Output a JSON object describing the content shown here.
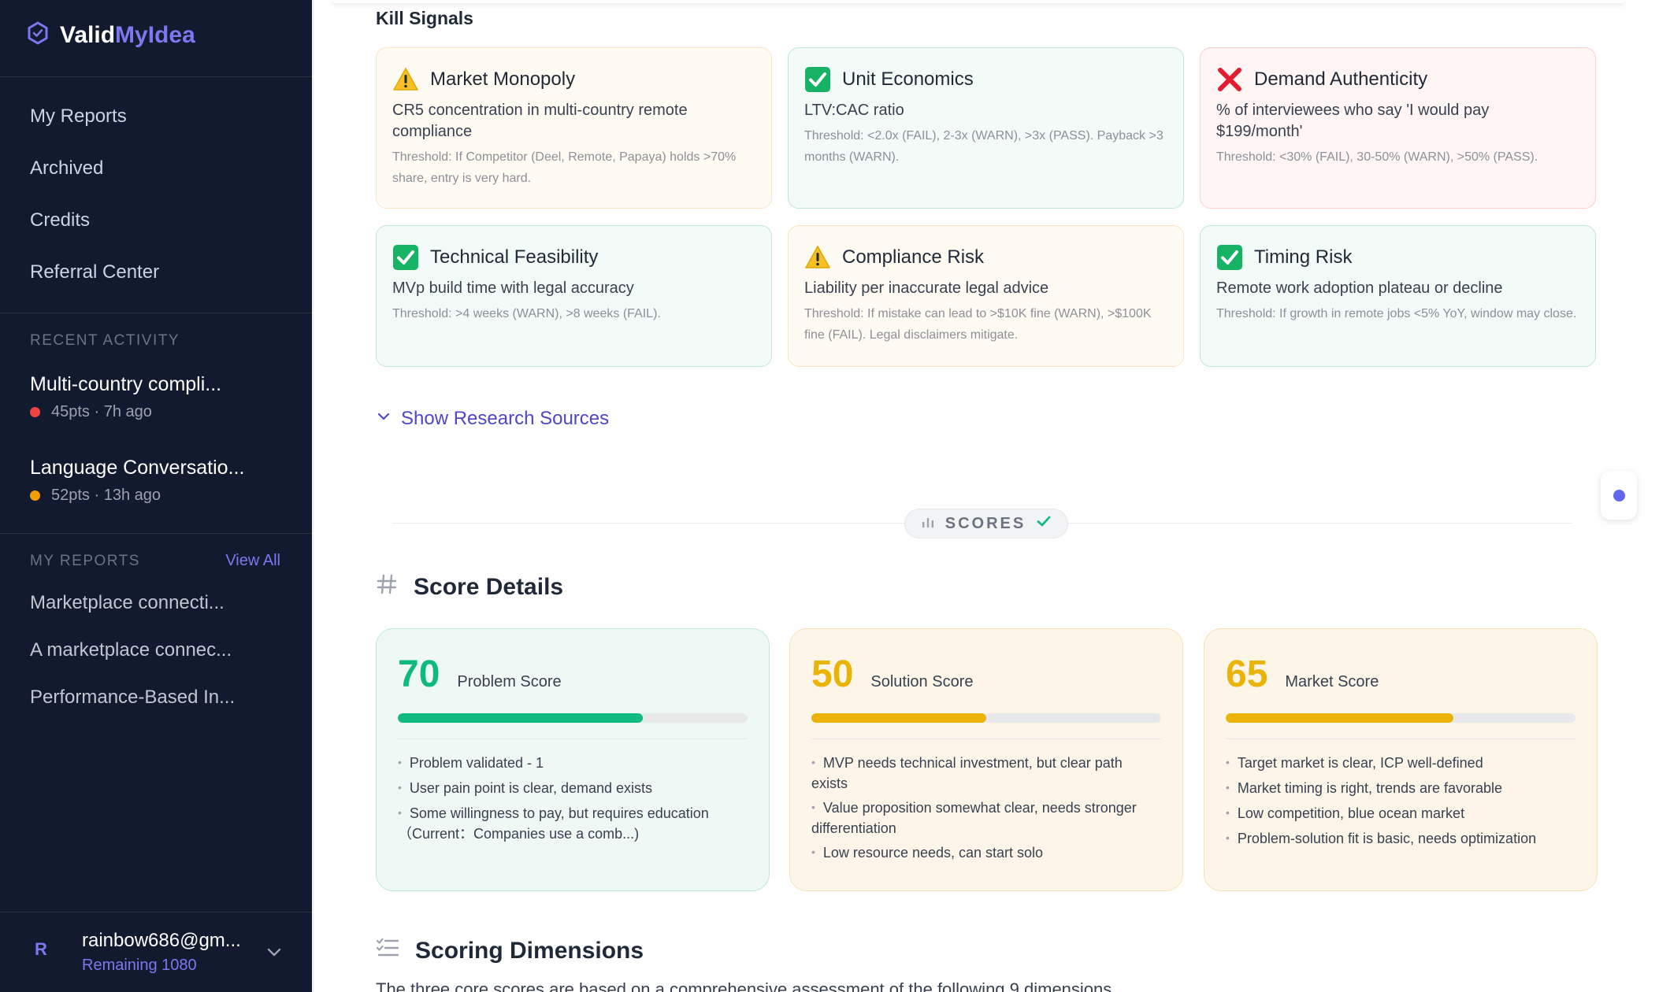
{
  "app": {
    "brand_prefix": "Valid",
    "brand_suffix": "MyIdea"
  },
  "sidebar": {
    "nav": [
      "My Reports",
      "Archived",
      "Credits",
      "Referral Center"
    ],
    "recent_label": "RECENT ACTIVITY",
    "recent": [
      {
        "title": "Multi-country compli...",
        "meta": "45pts · 7h ago",
        "status_color": "#ef4444"
      },
      {
        "title": "Language Conversatio...",
        "meta": "52pts · 13h ago",
        "status_color": "#f59e0b"
      }
    ],
    "reports_label": "MY REPORTS",
    "view_all": "View All",
    "reports": [
      "Marketplace connecti...",
      "A marketplace connec...",
      "Performance-Based In..."
    ],
    "user": {
      "avatar": "R",
      "email": "rainbow686@gm...",
      "credits": "Remaining 1080"
    }
  },
  "kill_signals": {
    "heading": "Kill Signals",
    "cards": [
      {
        "status": "warn",
        "icon": "warning-icon",
        "title": "Market Monopoly",
        "desc": "CR5 concentration in multi-country remote compliance",
        "threshold": "Threshold: If Competitor (Deel, Remote, Papaya) holds >70% share, entry is very hard."
      },
      {
        "status": "pass",
        "icon": "check-icon",
        "title": "Unit Economics",
        "desc": "LTV:CAC ratio",
        "threshold": "Threshold: <2.0x (FAIL), 2-3x (WARN), >3x (PASS). Payback >3 months (WARN)."
      },
      {
        "status": "fail",
        "icon": "cross-icon",
        "title": "Demand Authenticity",
        "desc": "% of interviewees who say 'I would pay $199/month'",
        "threshold": "Threshold: <30% (FAIL), 30-50% (WARN), >50% (PASS)."
      },
      {
        "status": "pass",
        "icon": "check-icon",
        "title": "Technical Feasibility",
        "desc": "MVp build time with legal accuracy",
        "threshold": "Threshold: >4 weeks (WARN), >8 weeks (FAIL)."
      },
      {
        "status": "warn",
        "icon": "warning-icon",
        "title": "Compliance Risk",
        "desc": "Liability per inaccurate legal advice",
        "threshold": "Threshold: If mistake can lead to >$10K fine (WARN), >$100K fine (FAIL). Legal disclaimers mitigate."
      },
      {
        "status": "pass",
        "icon": "check-icon",
        "title": "Timing Risk",
        "desc": "Remote work adoption plateau or decline",
        "threshold": "Threshold: If growth in remote jobs <5% YoY, window may close."
      }
    ],
    "show_sources": "Show Research Sources"
  },
  "scores_divider": "SCORES",
  "score_details": {
    "heading": "Score Details",
    "cards": [
      {
        "value": "70",
        "label": "Problem Score",
        "percent": 70,
        "color": "#10b981",
        "tone": "green",
        "bullets": [
          "Problem validated - 1",
          "User pain point is clear, demand exists",
          "Some willingness to pay, but requires education（Current：Companies use a comb...)"
        ]
      },
      {
        "value": "50",
        "label": "Solution Score",
        "percent": 50,
        "color": "#eab308",
        "tone": "amber",
        "bullets": [
          "MVP needs technical investment, but clear path exists",
          "Value proposition somewhat clear, needs stronger differentiation",
          "Low resource needs, can start solo"
        ]
      },
      {
        "value": "65",
        "label": "Market Score",
        "percent": 65,
        "color": "#eab308",
        "tone": "amber",
        "bullets": [
          "Target market is clear, ICP well-defined",
          "Market timing is right, trends are favorable",
          "Low competition, blue ocean market",
          "Problem-solution fit is basic, needs optimization"
        ]
      }
    ]
  },
  "scoring_dimensions": {
    "heading": "Scoring Dimensions",
    "intro": "The three core scores are based on a comprehensive assessment of the following 9 dimensions"
  }
}
